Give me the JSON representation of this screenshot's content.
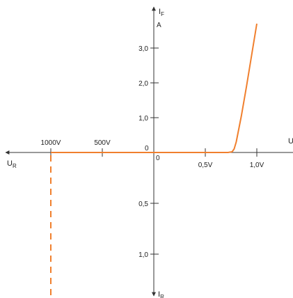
{
  "chart_data": {
    "type": "line",
    "title": "",
    "axes": {
      "forward_current_label": "I",
      "forward_current_sub": "F",
      "forward_current_unit": "A",
      "reverse_current_label": "I",
      "reverse_current_sub": "R",
      "forward_voltage_label": "U",
      "forward_voltage_sub": "F",
      "reverse_voltage_label": "U",
      "reverse_voltage_sub": "R"
    },
    "origin_labels": {
      "upper_left": "0",
      "lower_right": "0"
    },
    "forward_voltage_ticks": [
      {
        "value": 0.5,
        "label": "0,5V"
      },
      {
        "value": 1.0,
        "label": "1,0V"
      }
    ],
    "reverse_voltage_ticks": [
      {
        "value": 500,
        "label": "500V"
      },
      {
        "value": 1000,
        "label": "1000V"
      }
    ],
    "forward_current_ticks": [
      {
        "value": 1.0,
        "label": "1,0"
      },
      {
        "value": 2.0,
        "label": "2,0"
      },
      {
        "value": 3.0,
        "label": "3,0"
      }
    ],
    "reverse_current_ticks": [
      {
        "value": 0.5,
        "label": "0,5"
      },
      {
        "value": 1.0,
        "label": "1,0"
      }
    ],
    "forward_voltage_range": [
      0,
      1.3
    ],
    "forward_current_range": [
      0,
      4.0
    ],
    "reverse_voltage_range": [
      0,
      1300
    ],
    "reverse_current_range": [
      0,
      1.5
    ],
    "forward_curve": {
      "voltage_v": [
        0,
        0.72,
        0.76,
        0.78,
        0.8,
        0.85,
        0.9,
        0.95,
        1.0
      ],
      "current_a": [
        0,
        0,
        0.02,
        0.1,
        0.3,
        1.05,
        1.9,
        2.8,
        3.7
      ]
    },
    "reverse_curve": {
      "voltage_v": [
        0,
        1000
      ],
      "current": [
        0,
        0
      ]
    },
    "breakdown": {
      "voltage_v": 1000,
      "current_from": 0,
      "current_to": 1.45,
      "style": "dashed"
    },
    "curve_color": "#f07f2d",
    "axis_color": "#333333"
  }
}
